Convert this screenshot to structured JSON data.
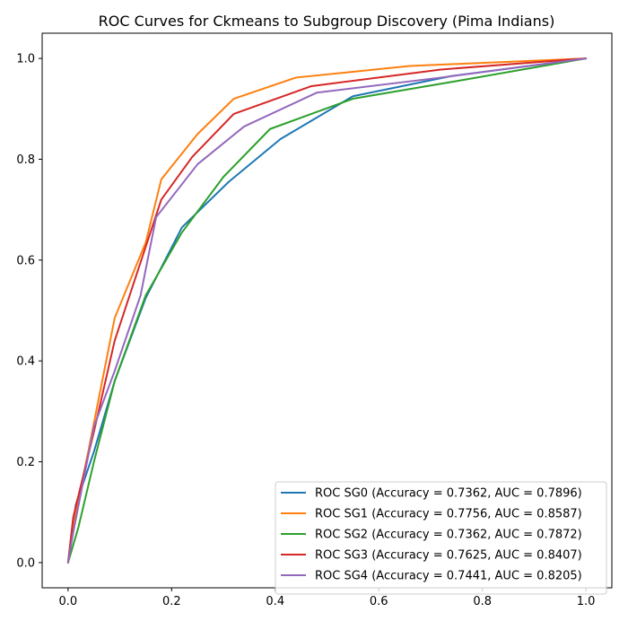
{
  "chart_data": {
    "type": "line",
    "title": "ROC Curves for Ckmeans to Subgroup Discovery (Pima Indians)",
    "xlabel": "",
    "ylabel": "",
    "xlim": [
      -0.05,
      1.05
    ],
    "ylim": [
      -0.05,
      1.05
    ],
    "xticks": [
      0.0,
      0.2,
      0.4,
      0.6,
      0.8,
      1.0
    ],
    "yticks": [
      0.0,
      0.2,
      0.4,
      0.6,
      0.8,
      1.0
    ],
    "xtick_labels": [
      "0.0",
      "0.2",
      "0.4",
      "0.6",
      "0.8",
      "1.0"
    ],
    "ytick_labels": [
      "0.0",
      "0.2",
      "0.4",
      "0.6",
      "0.8",
      "1.0"
    ],
    "grid": false,
    "legend_position": "lower-right",
    "series": [
      {
        "name": "ROC SG0 (Accuracy = 0.7362, AUC = 0.7896)",
        "color": "#1f77b4",
        "x": [
          0.0,
          0.015,
          0.05,
          0.09,
          0.15,
          0.22,
          0.31,
          0.41,
          0.55,
          0.74,
          1.0
        ],
        "y": [
          0.0,
          0.115,
          0.22,
          0.36,
          0.525,
          0.665,
          0.755,
          0.84,
          0.925,
          0.965,
          1.0
        ]
      },
      {
        "name": "ROC SG1 (Accuracy = 0.7756, AUC = 0.8587)",
        "color": "#ff7f0e",
        "x": [
          0.0,
          0.01,
          0.09,
          0.15,
          0.18,
          0.25,
          0.32,
          0.44,
          0.66,
          1.0
        ],
        "y": [
          0.0,
          0.07,
          0.485,
          0.635,
          0.76,
          0.85,
          0.92,
          0.962,
          0.985,
          1.0
        ]
      },
      {
        "name": "ROC SG2 (Accuracy = 0.7362, AUC = 0.7872)",
        "color": "#2ca02c",
        "x": [
          0.0,
          0.02,
          0.05,
          0.09,
          0.15,
          0.22,
          0.3,
          0.39,
          0.55,
          0.75,
          1.0
        ],
        "y": [
          0.0,
          0.07,
          0.2,
          0.36,
          0.53,
          0.655,
          0.765,
          0.86,
          0.92,
          0.955,
          1.0
        ]
      },
      {
        "name": "ROC SG3 (Accuracy = 0.7625, AUC = 0.8407)",
        "color": "#d62728",
        "x": [
          0.0,
          0.01,
          0.05,
          0.09,
          0.18,
          0.24,
          0.32,
          0.47,
          0.72,
          1.0
        ],
        "y": [
          0.0,
          0.09,
          0.26,
          0.44,
          0.72,
          0.805,
          0.89,
          0.945,
          0.978,
          1.0
        ]
      },
      {
        "name": "ROC SG4 (Accuracy = 0.7441, AUC = 0.8205)",
        "color": "#9467bd",
        "x": [
          0.0,
          0.01,
          0.05,
          0.09,
          0.14,
          0.17,
          0.25,
          0.34,
          0.48,
          0.72,
          1.0
        ],
        "y": [
          0.0,
          0.06,
          0.27,
          0.38,
          0.53,
          0.685,
          0.79,
          0.865,
          0.932,
          0.962,
          1.0
        ]
      }
    ]
  }
}
